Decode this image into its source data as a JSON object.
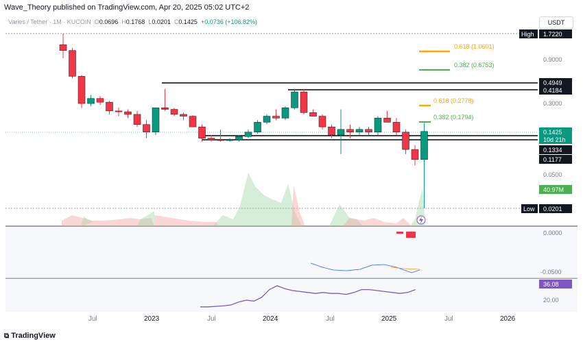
{
  "header": {
    "publisher": "Wave_Theory published on TradingView.com, Apr 20, 2025 05:02 UTC+2"
  },
  "legend": {
    "symbol": "Varies / Tether · 1M · KUCOIN",
    "o_label": "O",
    "o": "0.0696",
    "h_label": "H",
    "h": "0.1768",
    "l_label": "L",
    "l": "0.0201",
    "c_label": "C",
    "c": "0.1425",
    "change": "+0.0736 (+106.82%)"
  },
  "currency": "USDT",
  "price_axis": {
    "ticks": [
      "0.9000",
      "0.3000",
      "0.0500",
      "0.0000",
      "-0.0500",
      "20.00"
    ]
  },
  "price_tags": {
    "high_label": "High",
    "high_value": "1.7220",
    "level_1": "0.4949",
    "level_2": "0.4184",
    "current": "0.1425",
    "countdown": "10d 21h",
    "level_3": "0.1334",
    "level_4": "0.1177",
    "volume": "40.97M",
    "low_label": "Low",
    "low_value": "0.0201",
    "rsi": "36.08"
  },
  "fib_labels": {
    "f1": "0.618 (1.0601)",
    "f2": "0.382 (0.6753)",
    "f3": "0.618 (0.2778)",
    "f4": "0.382 (0.1794)"
  },
  "time_axis": [
    "Jul",
    "2023",
    "Jul",
    "2024",
    "Jul",
    "2025",
    "Jul",
    "2026"
  ],
  "footer": {
    "brand": "TradingView"
  },
  "colors": {
    "up": "#089981",
    "down": "#f23645",
    "fib_orange": "#ffa500",
    "fib_green": "#4caf50",
    "rsi": "#7e57c2"
  },
  "chart_data": {
    "type": "candlestick",
    "candles_ohlc": [
      [
        1.3,
        1.72,
        0.92,
        1.12
      ],
      [
        1.12,
        1.2,
        0.55,
        0.58
      ],
      [
        0.58,
        0.6,
        0.26,
        0.29
      ],
      [
        0.29,
        0.36,
        0.27,
        0.33
      ],
      [
        0.33,
        0.35,
        0.28,
        0.3
      ],
      [
        0.3,
        0.31,
        0.22,
        0.24
      ],
      [
        0.24,
        0.26,
        0.21,
        0.235
      ],
      [
        0.235,
        0.25,
        0.2,
        0.22
      ],
      [
        0.22,
        0.24,
        0.16,
        0.17
      ],
      [
        0.17,
        0.19,
        0.12,
        0.14
      ],
      [
        0.14,
        0.26,
        0.13,
        0.26
      ],
      [
        0.26,
        0.42,
        0.24,
        0.25
      ],
      [
        0.25,
        0.26,
        0.21,
        0.22
      ],
      [
        0.22,
        0.23,
        0.19,
        0.21
      ],
      [
        0.21,
        0.215,
        0.16,
        0.16
      ],
      [
        0.16,
        0.17,
        0.11,
        0.12
      ],
      [
        0.12,
        0.13,
        0.11,
        0.115
      ],
      [
        0.115,
        0.15,
        0.11,
        0.113
      ],
      [
        0.113,
        0.12,
        0.11,
        0.115
      ],
      [
        0.115,
        0.13,
        0.11,
        0.125
      ],
      [
        0.125,
        0.15,
        0.12,
        0.14
      ],
      [
        0.14,
        0.19,
        0.135,
        0.18
      ],
      [
        0.18,
        0.22,
        0.17,
        0.21
      ],
      [
        0.21,
        0.25,
        0.19,
        0.2
      ],
      [
        0.2,
        0.27,
        0.19,
        0.26
      ],
      [
        0.26,
        0.42,
        0.25,
        0.39
      ],
      [
        0.39,
        0.42,
        0.22,
        0.23
      ],
      [
        0.23,
        0.25,
        0.21,
        0.21
      ],
      [
        0.21,
        0.22,
        0.15,
        0.16
      ],
      [
        0.16,
        0.17,
        0.12,
        0.13
      ],
      [
        0.13,
        0.25,
        0.08,
        0.15
      ],
      [
        0.15,
        0.17,
        0.12,
        0.14
      ],
      [
        0.14,
        0.16,
        0.13,
        0.15
      ],
      [
        0.15,
        0.16,
        0.13,
        0.14
      ],
      [
        0.14,
        0.21,
        0.13,
        0.2
      ],
      [
        0.2,
        0.24,
        0.18,
        0.18
      ],
      [
        0.18,
        0.2,
        0.13,
        0.14
      ],
      [
        0.14,
        0.15,
        0.08,
        0.09
      ],
      [
        0.09,
        0.1,
        0.06,
        0.0696
      ],
      [
        0.0696,
        0.1768,
        0.0201,
        0.1425
      ]
    ],
    "rsi": [
      18,
      18,
      18.5,
      19,
      20,
      23,
      25,
      24,
      28,
      36,
      40,
      37,
      35,
      34,
      33,
      32,
      33,
      32,
      32,
      31,
      33,
      36,
      36,
      35,
      34,
      33,
      32,
      33,
      36
    ],
    "ylim_log": [
      0.015,
      1.9
    ]
  }
}
